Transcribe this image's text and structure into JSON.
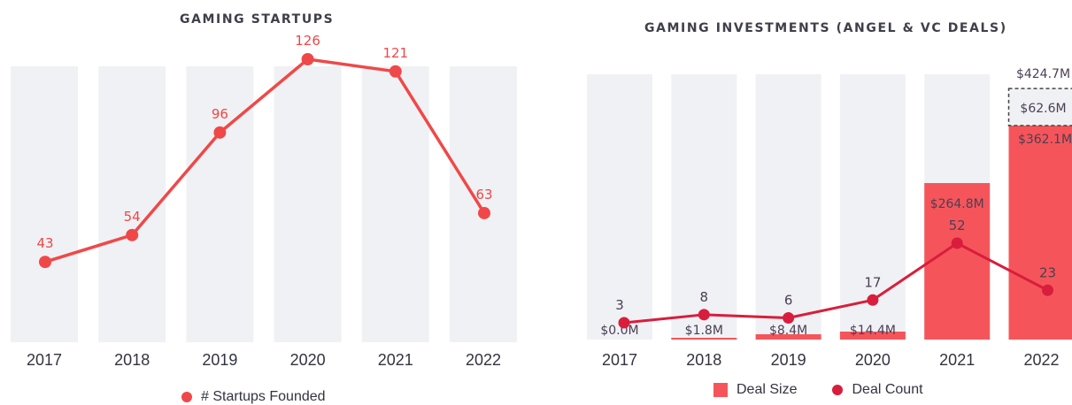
{
  "chart_data": [
    {
      "type": "line",
      "title": "GAMING STARTUPS",
      "categories": [
        "2017",
        "2018",
        "2019",
        "2020",
        "2021",
        "2022"
      ],
      "series": [
        {
          "name": "# Startups Founded",
          "values": [
            43,
            54,
            96,
            126,
            121,
            63
          ],
          "color": "#f04848"
        }
      ],
      "ylim": [
        0,
        150
      ],
      "legend": "bottom",
      "background_bar_color": "#f0f1f4"
    },
    {
      "type": "bar",
      "title": "GAMING INVESTMENTS (ANGEL & VC DEALS)",
      "categories": [
        "2017",
        "2018",
        "2019",
        "2020",
        "2021",
        "2022"
      ],
      "series": [
        {
          "name": "Deal Size",
          "values": [
            0.0,
            1.8,
            8.4,
            14.4,
            264.8,
            362.1
          ],
          "labels": [
            "$0.0M",
            "$1.8M",
            "$8.4M",
            "$14.4M",
            "$264.8M",
            "$362.1M"
          ],
          "color": "#f5555a"
        },
        {
          "name": "Deal Count",
          "type": "line",
          "values": [
            3,
            8,
            6,
            17,
            52,
            23
          ],
          "color": "#d81e3c"
        }
      ],
      "annotations": {
        "2022_additional": {
          "value": 62.6,
          "label": "$62.6M",
          "style": "dashed-box"
        },
        "2022_total": {
          "value": 424.7,
          "label": "$424.7M"
        }
      },
      "ylim": [
        0,
        424.7
      ],
      "legend": "bottom",
      "background_bar_color": "#f0f1f4"
    }
  ]
}
